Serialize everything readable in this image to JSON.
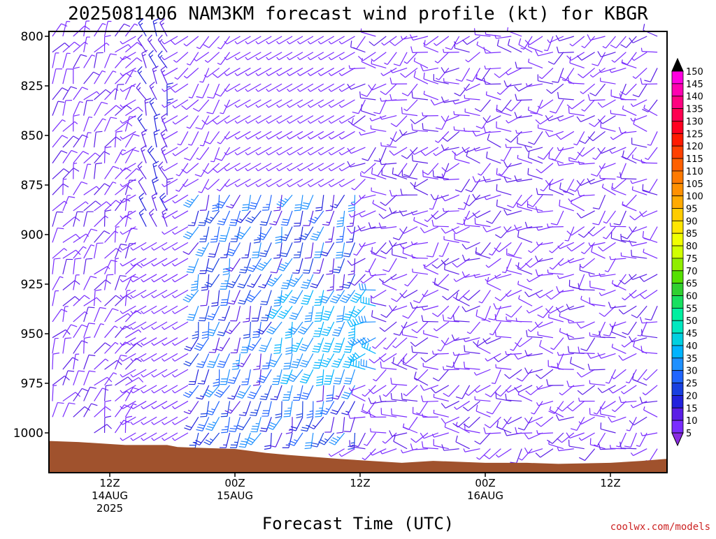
{
  "title": "2025081406 NAM3KM forecast wind profile (kt) for KBGR",
  "xlabel": "Forecast Time (UTC)",
  "credit": "coolwx.com/models",
  "ground_color": "#a0522d",
  "chart_data": {
    "type": "wind-barb-profile",
    "title": "2025081406 NAM3KM forecast wind profile (kt) for KBGR",
    "xlabel": "Forecast Time (UTC)",
    "ylabel": "",
    "x_range_hours": [
      0,
      60
    ],
    "y_axis": {
      "unit": "hPa",
      "range": [
        800,
        1020
      ],
      "inverted": true,
      "ticks": [
        800,
        825,
        850,
        875,
        900,
        925,
        950,
        975,
        1000
      ],
      "tick_labels": [
        "800",
        "825",
        "850",
        "875",
        "900",
        "925",
        "950",
        "975",
        "1000"
      ]
    },
    "x_ticks": [
      {
        "hour": 6,
        "lines": [
          "12Z",
          "14AUG",
          "2025"
        ]
      },
      {
        "hour": 18,
        "lines": [
          "00Z",
          "15AUG"
        ]
      },
      {
        "hour": 30,
        "lines": [
          "12Z"
        ]
      },
      {
        "hour": 42,
        "lines": [
          "00Z",
          "16AUG"
        ]
      },
      {
        "hour": 54,
        "lines": [
          "12Z"
        ]
      }
    ],
    "surface_pressure_hpa": [
      {
        "hour": 0,
        "p": 1002
      },
      {
        "hour": 3,
        "p": 1002.5
      },
      {
        "hour": 7.5,
        "p": 1004
      },
      {
        "hour": 11.5,
        "p": 1004
      },
      {
        "hour": 12.5,
        "p": 1005
      },
      {
        "hour": 15,
        "p": 1005.5
      },
      {
        "hour": 18,
        "p": 1006
      },
      {
        "hour": 19.5,
        "p": 1007
      },
      {
        "hour": 21,
        "p": 1008
      },
      {
        "hour": 23,
        "p": 1009
      },
      {
        "hour": 25.5,
        "p": 1010
      },
      {
        "hour": 28,
        "p": 1011
      },
      {
        "hour": 31,
        "p": 1012
      },
      {
        "hour": 34,
        "p": 1013
      },
      {
        "hour": 37,
        "p": 1012
      },
      {
        "hour": 42,
        "p": 1013
      },
      {
        "hour": 46,
        "p": 1013
      },
      {
        "hour": 49,
        "p": 1013.5
      },
      {
        "hour": 54,
        "p": 1013
      },
      {
        "hour": 57,
        "p": 1012
      },
      {
        "hour": 60,
        "p": 1011
      }
    ],
    "colorbar": {
      "unit": "kt",
      "levels": [
        5,
        10,
        15,
        20,
        25,
        30,
        35,
        40,
        45,
        50,
        55,
        60,
        65,
        70,
        75,
        80,
        85,
        90,
        95,
        100,
        105,
        110,
        115,
        120,
        125,
        130,
        135,
        140,
        145,
        150
      ],
      "colors": [
        "#7a2cff",
        "#5a1ee6",
        "#2222dd",
        "#1840e0",
        "#2065ff",
        "#1e90ff",
        "#00b4ff",
        "#00d0e0",
        "#00e8c0",
        "#00f0a0",
        "#18e060",
        "#30d030",
        "#55e000",
        "#90ee00",
        "#d0ff00",
        "#f0ff00",
        "#ffe600",
        "#ffcc00",
        "#ffaa00",
        "#ff9000",
        "#ff7a00",
        "#ff6000",
        "#ff4000",
        "#ff1a00",
        "#ff0020",
        "#ff0050",
        "#ff0080",
        "#ff00b0",
        "#ff00e0",
        "#ff00ff"
      ],
      "min_color": "#8a2be2",
      "max_color": "#000000"
    },
    "wind_field": {
      "time_step_hours": 1,
      "pressure_step_hpa": 10,
      "description_levels": [
        {
          "hour_range": [
            0,
            8
          ],
          "p_range": [
            800,
            1000
          ],
          "speed_kt": [
            5,
            12
          ],
          "dir_deg": [
            0,
            60
          ]
        },
        {
          "hour_range": [
            9,
            12
          ],
          "p_range": [
            800,
            900
          ],
          "speed_kt": [
            12,
            18
          ],
          "dir_deg": [
            320,
            360
          ]
        },
        {
          "hour_range": [
            13,
            18
          ],
          "p_range": [
            800,
            880
          ],
          "speed_kt": [
            5,
            10
          ],
          "dir_deg": [
            200,
            240
          ]
        },
        {
          "hour_range": [
            14,
            30
          ],
          "p_range": [
            880,
            1000
          ],
          "speed_kt": [
            10,
            35
          ],
          "dir_deg": [
            180,
            220
          ]
        },
        {
          "hour_range": [
            30,
            60
          ],
          "p_range": [
            800,
            1010
          ],
          "speed_kt": [
            5,
            12
          ],
          "dir_deg": [
            200,
            300
          ]
        }
      ]
    }
  }
}
